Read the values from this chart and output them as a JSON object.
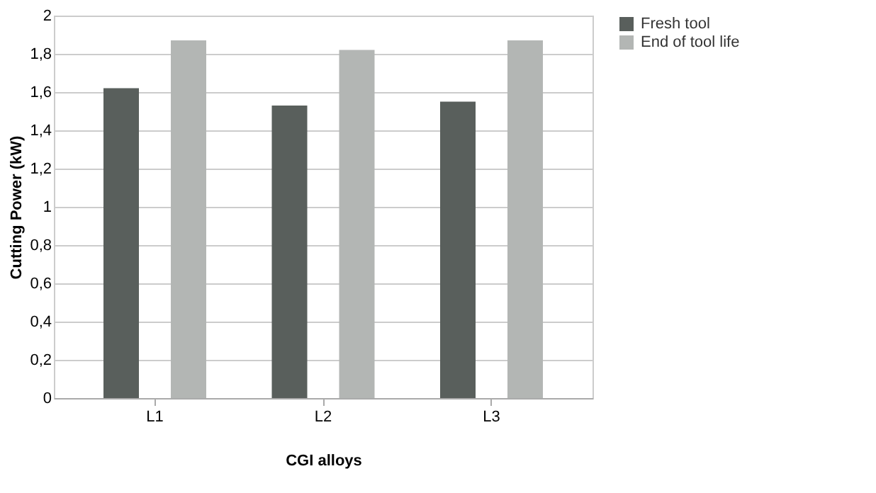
{
  "chart_data": {
    "type": "bar",
    "xlabel": "CGI alloys",
    "ylabel": "Cutting Power (kW)",
    "categories": [
      "L1",
      "L2",
      "L3"
    ],
    "series": [
      {
        "name": "Fresh tool",
        "color": "#595f5c",
        "values": [
          1.62,
          1.53,
          1.55
        ]
      },
      {
        "name": "End of tool life",
        "color": "#b3b6b4",
        "values": [
          1.87,
          1.82,
          1.87
        ]
      }
    ],
    "ylim": [
      0,
      2
    ],
    "yticks": [
      {
        "value": 0,
        "label": "0"
      },
      {
        "value": 0.2,
        "label": "0,2"
      },
      {
        "value": 0.4,
        "label": "0,4"
      },
      {
        "value": 0.6,
        "label": "0,6"
      },
      {
        "value": 0.8,
        "label": "0,8"
      },
      {
        "value": 1,
        "label": "1"
      },
      {
        "value": 1.2,
        "label": "1,2"
      },
      {
        "value": 1.4,
        "label": "1,4"
      },
      {
        "value": 1.6,
        "label": "1,6"
      },
      {
        "value": 1.8,
        "label": "1,8"
      },
      {
        "value": 2,
        "label": "2"
      }
    ],
    "grid": "y",
    "legend": "right"
  }
}
